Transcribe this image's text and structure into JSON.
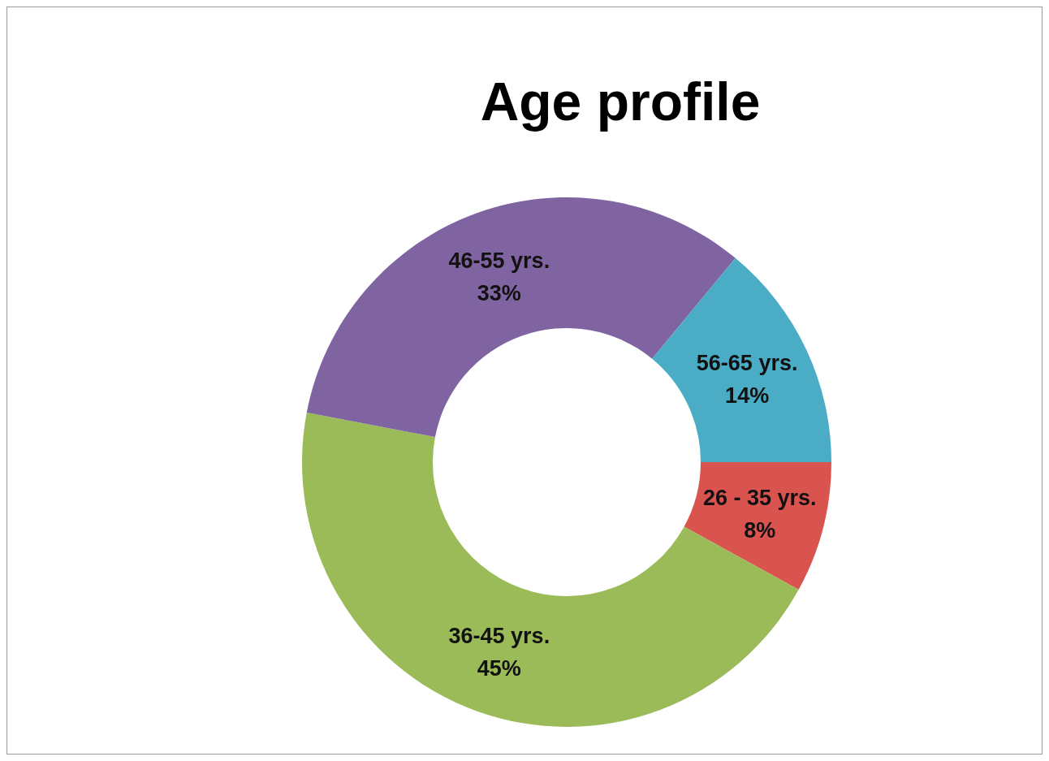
{
  "chart_data": {
    "type": "donut",
    "title": "Age profile",
    "categories": [
      "26 - 35 yrs.",
      "36-45 yrs.",
      "46-55 yrs.",
      "56-65 yrs."
    ],
    "values": [
      8,
      45,
      33,
      14
    ],
    "value_labels": [
      "8%",
      "45%",
      "33%",
      "14%"
    ],
    "colors": [
      "#d9534f",
      "#9bbb59",
      "#8064a2",
      "#4bacc6"
    ],
    "legend": false
  }
}
